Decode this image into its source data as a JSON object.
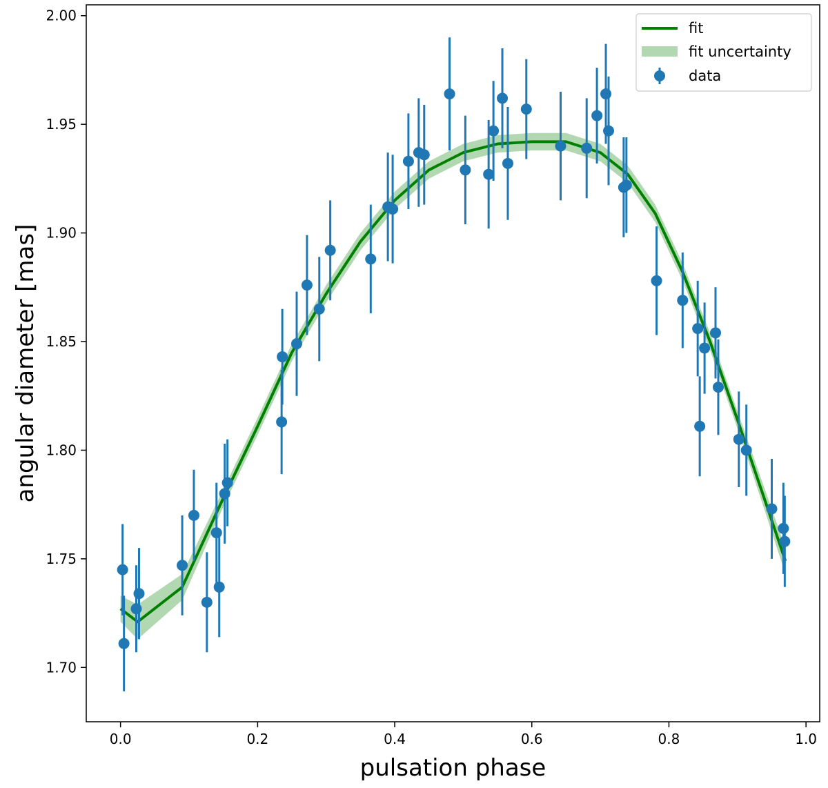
{
  "chart_data": {
    "type": "scatter",
    "title": "",
    "xlabel": "pulsation phase",
    "ylabel": "angular diameter [mas]",
    "xlim": [
      -0.05,
      1.02
    ],
    "ylim": [
      1.675,
      2.005
    ],
    "xticks": [
      0.0,
      0.2,
      0.4,
      0.6,
      0.8,
      1.0
    ],
    "xtick_labels": [
      "0.0",
      "0.2",
      "0.4",
      "0.6",
      "0.8",
      "1.0"
    ],
    "yticks": [
      1.7,
      1.75,
      1.8,
      1.85,
      1.9,
      1.95,
      2.0
    ],
    "ytick_labels": [
      "1.70",
      "1.75",
      "1.80",
      "1.85",
      "1.90",
      "1.95",
      "2.00"
    ],
    "legend": {
      "position": "top-right",
      "entries": [
        "fit",
        "fit uncertainty",
        "data"
      ]
    },
    "colors": {
      "fit": "#008000",
      "band": "#b2d8b2",
      "data": "#1f77b4"
    },
    "fit": {
      "x": [
        0.0,
        0.025,
        0.09,
        0.15,
        0.2,
        0.25,
        0.3,
        0.35,
        0.4,
        0.45,
        0.5,
        0.55,
        0.6,
        0.65,
        0.7,
        0.74,
        0.78,
        0.82,
        0.86,
        0.9,
        0.94,
        0.97
      ],
      "y": [
        1.727,
        1.721,
        1.737,
        1.778,
        1.811,
        1.845,
        1.872,
        1.896,
        1.915,
        1.929,
        1.937,
        1.941,
        1.942,
        1.942,
        1.937,
        1.927,
        1.909,
        1.882,
        1.85,
        1.814,
        1.777,
        1.749
      ],
      "band_halfwidth": [
        0.006,
        0.008,
        0.006,
        0.004,
        0.004,
        0.004,
        0.004,
        0.004,
        0.004,
        0.004,
        0.004,
        0.004,
        0.004,
        0.004,
        0.004,
        0.004,
        0.004,
        0.004,
        0.004,
        0.004,
        0.005,
        0.006
      ]
    },
    "series": [
      {
        "name": "data",
        "x": [
          0.003,
          0.005,
          0.023,
          0.027,
          0.09,
          0.107,
          0.126,
          0.14,
          0.144,
          0.152,
          0.156,
          0.235,
          0.236,
          0.257,
          0.272,
          0.29,
          0.306,
          0.365,
          0.39,
          0.397,
          0.42,
          0.435,
          0.443,
          0.48,
          0.503,
          0.537,
          0.544,
          0.557,
          0.565,
          0.592,
          0.642,
          0.68,
          0.695,
          0.708,
          0.712,
          0.734,
          0.738,
          0.782,
          0.82,
          0.842,
          0.845,
          0.852,
          0.868,
          0.872,
          0.902,
          0.913,
          0.95,
          0.967,
          0.969
        ],
        "y": [
          1.745,
          1.711,
          1.727,
          1.734,
          1.747,
          1.77,
          1.73,
          1.762,
          1.737,
          1.78,
          1.785,
          1.813,
          1.843,
          1.849,
          1.876,
          1.865,
          1.892,
          1.888,
          1.912,
          1.911,
          1.933,
          1.937,
          1.936,
          1.964,
          1.929,
          1.927,
          1.947,
          1.962,
          1.932,
          1.957,
          1.94,
          1.939,
          1.954,
          1.964,
          1.947,
          1.921,
          1.922,
          1.878,
          1.869,
          1.856,
          1.811,
          1.847,
          1.854,
          1.829,
          1.805,
          1.8,
          1.773,
          1.764,
          1.758
        ],
        "yerr": [
          0.021,
          0.022,
          0.02,
          0.021,
          0.023,
          0.021,
          0.023,
          0.023,
          0.023,
          0.023,
          0.02,
          0.024,
          0.022,
          0.024,
          0.023,
          0.024,
          0.023,
          0.025,
          0.025,
          0.025,
          0.022,
          0.025,
          0.023,
          0.026,
          0.025,
          0.025,
          0.023,
          0.023,
          0.026,
          0.023,
          0.025,
          0.023,
          0.022,
          0.023,
          0.025,
          0.023,
          0.022,
          0.025,
          0.022,
          0.022,
          0.023,
          0.021,
          0.021,
          0.022,
          0.022,
          0.021,
          0.023,
          0.021,
          0.021
        ]
      }
    ]
  }
}
